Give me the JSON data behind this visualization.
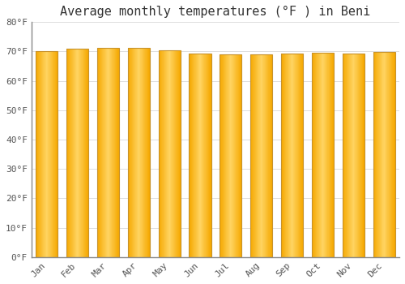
{
  "months": [
    "Jan",
    "Feb",
    "Mar",
    "Apr",
    "May",
    "Jun",
    "Jul",
    "Aug",
    "Sep",
    "Oct",
    "Nov",
    "Dec"
  ],
  "values": [
    70.0,
    71.0,
    71.2,
    71.2,
    70.3,
    69.4,
    68.9,
    69.0,
    69.2,
    69.5,
    69.4,
    69.8
  ],
  "title": "Average monthly temperatures (°F ) in Beni",
  "ylim": [
    0,
    80
  ],
  "yticks": [
    0,
    10,
    20,
    30,
    40,
    50,
    60,
    70,
    80
  ],
  "ytick_labels": [
    "0°F",
    "10°F",
    "20°F",
    "30°F",
    "40°F",
    "50°F",
    "60°F",
    "70°F",
    "80°F"
  ],
  "bar_color_center": "#FFD580",
  "bar_color_edge": "#F5A800",
  "bar_outline_color": "#C8922A",
  "background_color": "#FFFFFF",
  "grid_color": "#DDDDDD",
  "title_fontsize": 11,
  "tick_fontsize": 8,
  "font_family": "monospace"
}
